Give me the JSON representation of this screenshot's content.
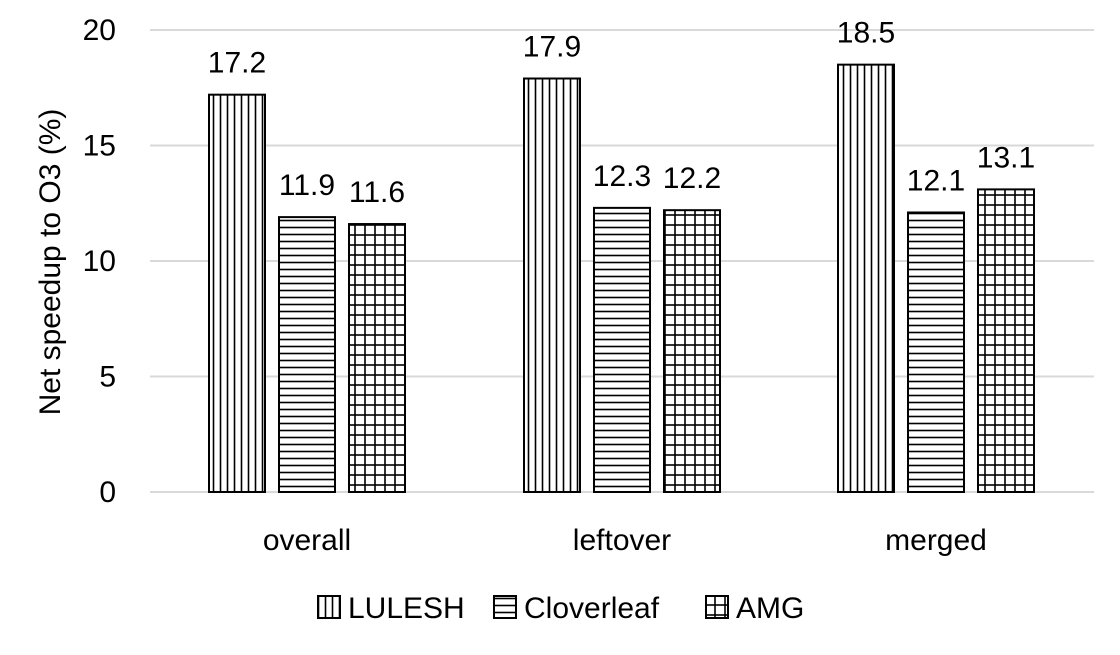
{
  "chart_data": {
    "type": "bar",
    "categories": [
      "overall",
      "leftover",
      "merged"
    ],
    "series": [
      {
        "name": "LULESH",
        "values": [
          17.2,
          17.9,
          18.5
        ],
        "pattern": "vertical-lines"
      },
      {
        "name": "Cloverleaf",
        "values": [
          11.9,
          12.3,
          12.1
        ],
        "pattern": "horizontal-lines"
      },
      {
        "name": "AMG",
        "values": [
          11.6,
          12.2,
          13.1
        ],
        "pattern": "grid"
      }
    ],
    "data_labels": [
      [
        "17.2",
        "17.9",
        "18.5"
      ],
      [
        "11.9",
        "12.3",
        "12.1"
      ],
      [
        "11.6",
        "12.2",
        "13.1"
      ]
    ],
    "title": "",
    "xlabel": "",
    "ylabel": "Net speedup to O3 (%)",
    "ylim": [
      0,
      20
    ],
    "yticks": [
      0,
      5,
      10,
      15,
      20
    ],
    "ytick_labels": [
      "0",
      "5",
      "10",
      "15",
      "20"
    ],
    "grid": true,
    "legend_position": "bottom-center",
    "colors": {
      "bar_stroke": "#000000",
      "bar_fill": "#ffffff",
      "gridline": "#d9d9d9",
      "text": "#000000"
    }
  }
}
